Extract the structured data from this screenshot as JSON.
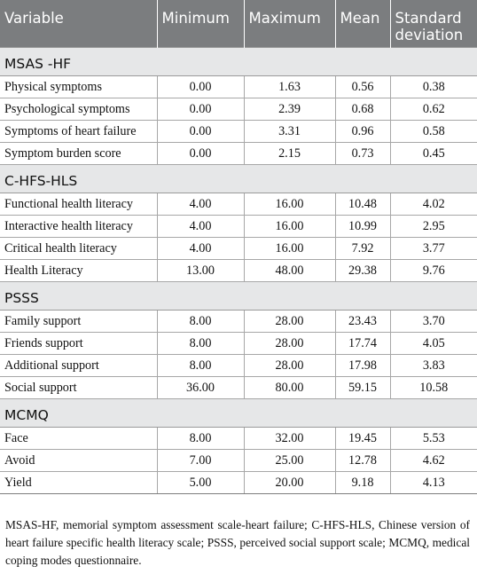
{
  "header": {
    "variable": "Variable",
    "minimum": "Minimum",
    "maximum": "Maximum",
    "mean": "Mean",
    "sd": "Standard deviation"
  },
  "sections": [
    {
      "name": "MSAS -HF",
      "rows": [
        {
          "variable": "Physical symptoms",
          "min": "0.00",
          "max": "1.63",
          "mean": "0.56",
          "sd": "0.38"
        },
        {
          "variable": "Psychological symptoms",
          "min": "0.00",
          "max": "2.39",
          "mean": "0.68",
          "sd": "0.62"
        },
        {
          "variable": "Symptoms of heart failure",
          "min": "0.00",
          "max": "3.31",
          "mean": "0.96",
          "sd": "0.58"
        },
        {
          "variable": "Symptom burden score",
          "min": "0.00",
          "max": "2.15",
          "mean": "0.73",
          "sd": "0.45"
        }
      ]
    },
    {
      "name": "C-HFS-HLS",
      "rows": [
        {
          "variable": "Functional health literacy",
          "min": "4.00",
          "max": "16.00",
          "mean": "10.48",
          "sd": "4.02"
        },
        {
          "variable": "Interactive health literacy",
          "min": "4.00",
          "max": "16.00",
          "mean": "10.99",
          "sd": "2.95"
        },
        {
          "variable": "Critical health literacy",
          "min": "4.00",
          "max": "16.00",
          "mean": "7.92",
          "sd": "3.77"
        },
        {
          "variable": "Health Literacy",
          "min": "13.00",
          "max": "48.00",
          "mean": "29.38",
          "sd": "9.76"
        }
      ]
    },
    {
      "name": "PSSS",
      "rows": [
        {
          "variable": "Family support",
          "min": "8.00",
          "max": "28.00",
          "mean": "23.43",
          "sd": "3.70"
        },
        {
          "variable": "Friends support",
          "min": "8.00",
          "max": "28.00",
          "mean": "17.74",
          "sd": "4.05"
        },
        {
          "variable": "Additional support",
          "min": "8.00",
          "max": "28.00",
          "mean": "17.98",
          "sd": "3.83"
        },
        {
          "variable": "Social support",
          "min": "36.00",
          "max": "80.00",
          "mean": "59.15",
          "sd": "10.58"
        }
      ]
    },
    {
      "name": "MCMQ",
      "rows": [
        {
          "variable": "Face",
          "min": "8.00",
          "max": "32.00",
          "mean": "19.45",
          "sd": "5.53"
        },
        {
          "variable": "Avoid",
          "min": "7.00",
          "max": "25.00",
          "mean": "12.78",
          "sd": "4.62"
        },
        {
          "variable": "Yield",
          "min": "5.00",
          "max": "20.00",
          "mean": "9.18",
          "sd": "4.13"
        }
      ]
    }
  ],
  "footnote": "MSAS-HF, memorial symptom assessment scale-heart failure; C-HFS-HLS, Chinese version of heart failure specific health literacy scale; PSSS, perceived social support scale; MCMQ, medical coping modes questionnaire."
}
